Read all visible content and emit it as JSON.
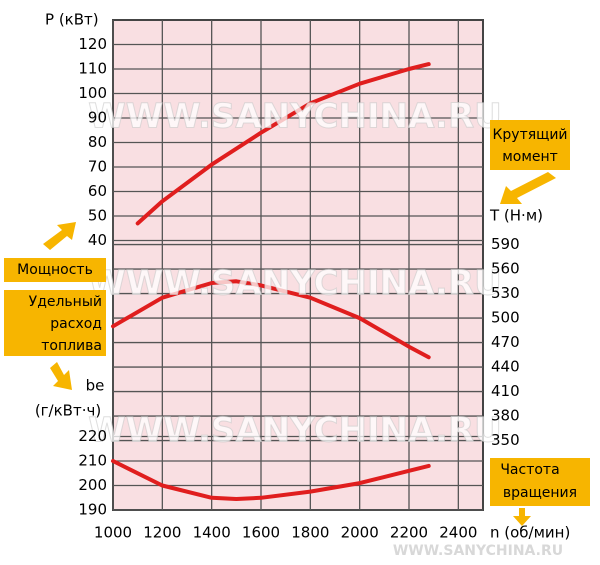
{
  "chart_data": {
    "type": "line",
    "x_label": "n (об/мин)",
    "y_label": "P (кВт)",
    "y2_label": "T (Н·м)",
    "y3_label": [
      "be",
      "(г/кВт·ч)"
    ],
    "annotations": {
      "torque": [
        "Крутящий",
        "момент"
      ],
      "power": "Мощность",
      "fuel": [
        "Удельный",
        "расход",
        "топлива"
      ],
      "speed": [
        "Частота",
        "вращения"
      ]
    },
    "watermark": "WWW.SANYCHINA.RU",
    "xlim": [
      1000,
      2500
    ],
    "xticks": [
      1000,
      1200,
      1400,
      1600,
      1800,
      2000,
      2200,
      2400
    ],
    "ylim": [
      -70,
      130
    ],
    "yticks": [
      40,
      50,
      60,
      70,
      80,
      90,
      100,
      110,
      120
    ],
    "y2lim": [
      265,
      865
    ],
    "y2ticks": [
      350,
      380,
      410,
      440,
      470,
      500,
      530,
      560,
      590
    ],
    "y3lim": [
      190,
      390
    ],
    "y3ticks": [
      190,
      200,
      210,
      220
    ],
    "grid": true,
    "series": [
      {
        "name": "Мощность",
        "color": "#e01e1e",
        "axis": "y",
        "x": [
          1100,
          1200,
          1400,
          1600,
          1800,
          2000,
          2200,
          2280
        ],
        "values": [
          47,
          56,
          71,
          84,
          96,
          104,
          110,
          112
        ]
      },
      {
        "name": "Крутящий момент",
        "color": "#e01e1e",
        "axis": "y2",
        "x": [
          1000,
          1200,
          1400,
          1500,
          1600,
          1800,
          2000,
          2200,
          2280
        ],
        "values": [
          490,
          525,
          543,
          545,
          540,
          525,
          500,
          465,
          452
        ]
      },
      {
        "name": "Удельный расход топлива",
        "color": "#e01e1e",
        "axis": "y3",
        "x": [
          1000,
          1200,
          1400,
          1500,
          1600,
          1800,
          2000,
          2200,
          2280
        ],
        "values": [
          210,
          200,
          195,
          194.5,
          195,
          197.5,
          201,
          206,
          208
        ]
      }
    ]
  }
}
